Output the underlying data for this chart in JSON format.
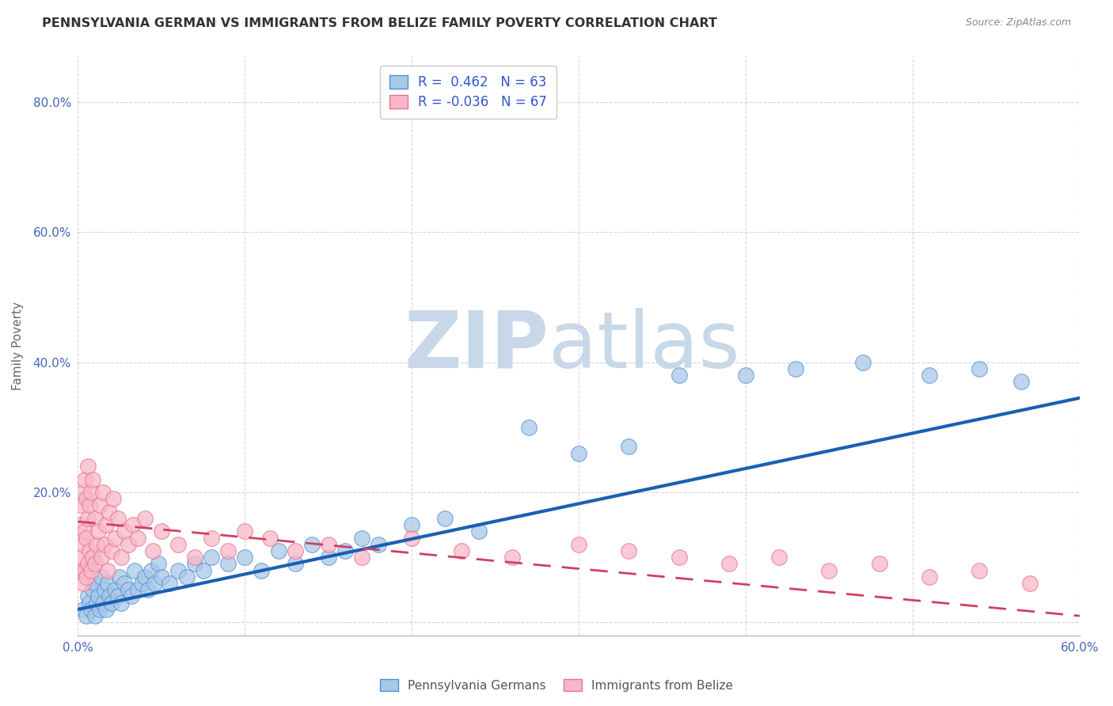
{
  "title": "PENNSYLVANIA GERMAN VS IMMIGRANTS FROM BELIZE FAMILY POVERTY CORRELATION CHART",
  "source": "Source: ZipAtlas.com",
  "ylabel": "Family Poverty",
  "xlim": [
    0.0,
    0.6
  ],
  "ylim": [
    -0.02,
    0.87
  ],
  "xticks": [
    0.0,
    0.1,
    0.2,
    0.3,
    0.4,
    0.5,
    0.6
  ],
  "xticklabels": [
    "0.0%",
    "",
    "",
    "",
    "",
    "",
    "60.0%"
  ],
  "yticks": [
    0.0,
    0.2,
    0.4,
    0.6,
    0.8
  ],
  "yticklabels": [
    "",
    "20.0%",
    "40.0%",
    "60.0%",
    "80.0%"
  ],
  "blue_R": "0.462",
  "blue_N": "63",
  "pink_R": "-0.036",
  "pink_N": "67",
  "blue_color": "#a8c8e8",
  "pink_color": "#f8b8c8",
  "blue_edge_color": "#5090d0",
  "pink_edge_color": "#e87090",
  "blue_line_color": "#1a5fb4",
  "pink_line_color": "#d04060",
  "watermark_zip": "ZIP",
  "watermark_atlas": "atlas",
  "watermark_color": "#c8d8e8",
  "legend_text_color": "#3355cc",
  "tick_color": "#4466bb",
  "ylabel_color": "#666666",
  "blue_scatter_x": [
    0.003,
    0.005,
    0.006,
    0.007,
    0.008,
    0.009,
    0.01,
    0.01,
    0.011,
    0.012,
    0.013,
    0.014,
    0.015,
    0.016,
    0.017,
    0.018,
    0.019,
    0.02,
    0.022,
    0.024,
    0.025,
    0.026,
    0.028,
    0.03,
    0.032,
    0.034,
    0.036,
    0.038,
    0.04,
    0.042,
    0.044,
    0.046,
    0.048,
    0.05,
    0.055,
    0.06,
    0.065,
    0.07,
    0.075,
    0.08,
    0.09,
    0.1,
    0.11,
    0.12,
    0.13,
    0.14,
    0.15,
    0.16,
    0.17,
    0.18,
    0.2,
    0.22,
    0.24,
    0.27,
    0.3,
    0.33,
    0.36,
    0.4,
    0.43,
    0.47,
    0.51,
    0.54,
    0.565
  ],
  "blue_scatter_y": [
    0.02,
    0.01,
    0.04,
    0.03,
    0.02,
    0.05,
    0.01,
    0.06,
    0.03,
    0.04,
    0.02,
    0.07,
    0.03,
    0.05,
    0.02,
    0.06,
    0.04,
    0.03,
    0.05,
    0.04,
    0.07,
    0.03,
    0.06,
    0.05,
    0.04,
    0.08,
    0.05,
    0.06,
    0.07,
    0.05,
    0.08,
    0.06,
    0.09,
    0.07,
    0.06,
    0.08,
    0.07,
    0.09,
    0.08,
    0.1,
    0.09,
    0.1,
    0.08,
    0.11,
    0.09,
    0.12,
    0.1,
    0.11,
    0.13,
    0.12,
    0.15,
    0.16,
    0.14,
    0.3,
    0.26,
    0.27,
    0.38,
    0.38,
    0.39,
    0.4,
    0.38,
    0.39,
    0.37
  ],
  "pink_scatter_x": [
    0.001,
    0.001,
    0.002,
    0.002,
    0.003,
    0.003,
    0.003,
    0.004,
    0.004,
    0.004,
    0.005,
    0.005,
    0.005,
    0.006,
    0.006,
    0.006,
    0.007,
    0.007,
    0.008,
    0.008,
    0.009,
    0.009,
    0.01,
    0.01,
    0.011,
    0.012,
    0.013,
    0.014,
    0.015,
    0.016,
    0.017,
    0.018,
    0.019,
    0.02,
    0.021,
    0.022,
    0.024,
    0.026,
    0.028,
    0.03,
    0.033,
    0.036,
    0.04,
    0.045,
    0.05,
    0.06,
    0.07,
    0.08,
    0.09,
    0.1,
    0.115,
    0.13,
    0.15,
    0.17,
    0.2,
    0.23,
    0.26,
    0.3,
    0.33,
    0.36,
    0.39,
    0.42,
    0.45,
    0.48,
    0.51,
    0.54,
    0.57
  ],
  "pink_scatter_y": [
    0.08,
    0.15,
    0.1,
    0.18,
    0.06,
    0.12,
    0.2,
    0.08,
    0.14,
    0.22,
    0.07,
    0.13,
    0.19,
    0.09,
    0.16,
    0.24,
    0.11,
    0.18,
    0.08,
    0.2,
    0.1,
    0.22,
    0.09,
    0.16,
    0.12,
    0.14,
    0.18,
    0.1,
    0.2,
    0.12,
    0.15,
    0.08,
    0.17,
    0.11,
    0.19,
    0.13,
    0.16,
    0.1,
    0.14,
    0.12,
    0.15,
    0.13,
    0.16,
    0.11,
    0.14,
    0.12,
    0.1,
    0.13,
    0.11,
    0.14,
    0.13,
    0.11,
    0.12,
    0.1,
    0.13,
    0.11,
    0.1,
    0.12,
    0.11,
    0.1,
    0.09,
    0.1,
    0.08,
    0.09,
    0.07,
    0.08,
    0.06
  ],
  "blue_line_x0": 0.0,
  "blue_line_x1": 0.6,
  "blue_line_y0": 0.02,
  "blue_line_y1": 0.345,
  "pink_line_x0": 0.0,
  "pink_line_x1": 0.6,
  "pink_line_y0": 0.155,
  "pink_line_y1": 0.01
}
